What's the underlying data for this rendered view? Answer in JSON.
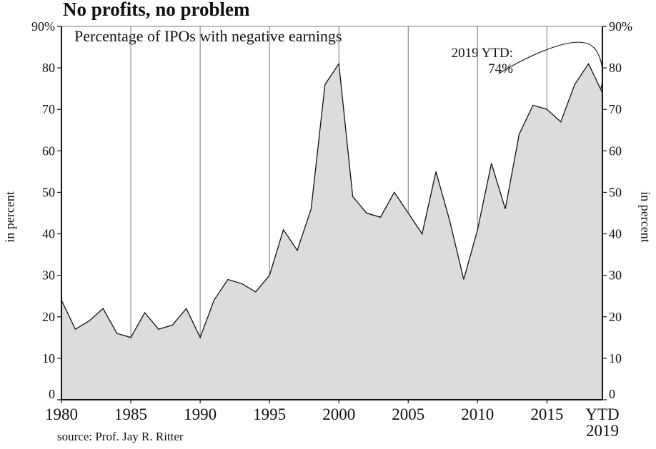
{
  "page_title": "No profits, no problem",
  "source": "source: Prof. Jay R. Ritter",
  "annotation": {
    "line1": "2019 YTD:",
    "line2": "74%"
  },
  "chart_data": {
    "type": "area",
    "title": "Percentage of IPOs with negative earnings",
    "ylabel": "in percent",
    "ylim": [
      0,
      90
    ],
    "y_ticks": [
      {
        "value": 0,
        "label": "0"
      },
      {
        "value": 10,
        "label": "10"
      },
      {
        "value": 20,
        "label": "20"
      },
      {
        "value": 30,
        "label": "30"
      },
      {
        "value": 40,
        "label": "40"
      },
      {
        "value": 50,
        "label": "50"
      },
      {
        "value": 60,
        "label": "60"
      },
      {
        "value": 70,
        "label": "70"
      },
      {
        "value": 80,
        "label": "80"
      },
      {
        "value": 90,
        "label": "90%"
      }
    ],
    "x_ticks": [
      {
        "value": 1980,
        "label": "1980"
      },
      {
        "value": 1985,
        "label": "1985"
      },
      {
        "value": 1990,
        "label": "1990"
      },
      {
        "value": 1995,
        "label": "1995"
      },
      {
        "value": 2000,
        "label": "2000"
      },
      {
        "value": 2005,
        "label": "2005"
      },
      {
        "value": 2010,
        "label": "2010"
      },
      {
        "value": 2015,
        "label": "2015"
      }
    ],
    "x_end_label": [
      "YTD",
      "2019"
    ],
    "grid": "vertical",
    "fill_color": "#dcdcdc",
    "line_color": "#111111",
    "x": [
      1980,
      1981,
      1982,
      1983,
      1984,
      1985,
      1986,
      1987,
      1988,
      1989,
      1990,
      1991,
      1992,
      1993,
      1994,
      1995,
      1996,
      1997,
      1998,
      1999,
      2000,
      2001,
      2002,
      2003,
      2004,
      2005,
      2006,
      2007,
      2008,
      2009,
      2010,
      2011,
      2012,
      2013,
      2014,
      2015,
      2016,
      2017,
      2018,
      2019
    ],
    "y": [
      24,
      17,
      19,
      22,
      16,
      15,
      21,
      17,
      18,
      22,
      15,
      24,
      29,
      28,
      26,
      30,
      41,
      36,
      46,
      76,
      81,
      49,
      45,
      44,
      50,
      45,
      40,
      55,
      43,
      29,
      41,
      57,
      46,
      64,
      71,
      70,
      67,
      76,
      81,
      74
    ]
  }
}
